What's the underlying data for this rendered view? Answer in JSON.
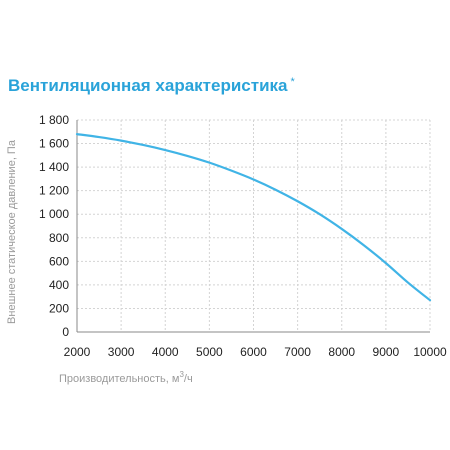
{
  "chart_data": {
    "type": "line",
    "title": "Вентиляционная характеристика",
    "title_mark": "*",
    "xlabel_prefix": "Производительность, м",
    "xlabel_sup": "3",
    "xlabel_suffix": "/ч",
    "ylabel": "Внешнее статическое давление, Па",
    "xlim": [
      2000,
      10000
    ],
    "ylim": [
      0,
      1800
    ],
    "x_ticks": [
      2000,
      3000,
      4000,
      5000,
      6000,
      7000,
      8000,
      9000,
      10000
    ],
    "x_tick_labels": [
      "2000",
      "3000",
      "4000",
      "5000",
      "6000",
      "7000",
      "8000",
      "9000",
      "10000"
    ],
    "y_ticks": [
      0,
      200,
      400,
      600,
      800,
      1000,
      1200,
      1400,
      1600,
      1800
    ],
    "y_tick_labels": [
      "0",
      "200",
      "400",
      "600",
      "800",
      "1 000",
      "1 200",
      "1 400",
      "1 600",
      "1 800"
    ],
    "grid": true,
    "series": [
      {
        "x": [
          2000,
          2500,
          3000,
          3500,
          4000,
          4500,
          5000,
          5500,
          6000,
          6500,
          7000,
          7500,
          8000,
          8500,
          9000,
          9500,
          10000
        ],
        "y": [
          1680,
          1655,
          1625,
          1588,
          1545,
          1495,
          1438,
          1370,
          1295,
          1208,
          1110,
          1000,
          875,
          737,
          585,
          420,
          270
        ]
      }
    ],
    "colors": {
      "line": "#40b4e6",
      "grid": "#d4d4d4",
      "axis": "#888888",
      "title": "#2aa3d9"
    }
  }
}
